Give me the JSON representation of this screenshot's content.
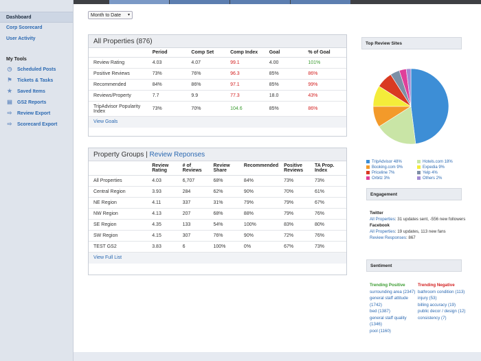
{
  "sidebar": {
    "items": [
      {
        "label": "Dashboard"
      },
      {
        "label": "Corp Scorecard"
      },
      {
        "label": "User Activity"
      }
    ],
    "tools_heading": "My Tools",
    "tools": [
      {
        "label": "Scheduled Posts",
        "icon": "clock-icon"
      },
      {
        "label": "Tickets & Tasks",
        "icon": "tag-icon"
      },
      {
        "label": "Saved Items",
        "icon": "star-icon"
      },
      {
        "label": "GS2 Reports",
        "icon": "bar-chart-icon"
      },
      {
        "label": "Review Export",
        "icon": "export-icon"
      },
      {
        "label": "Scorecard Export",
        "icon": "export-icon"
      }
    ]
  },
  "filter": {
    "selected": "Month to Date"
  },
  "all_properties": {
    "title": "All Properties (876)",
    "headers": [
      "",
      "Period",
      "Comp Set",
      "Comp Index",
      "Goal",
      "% of Goal"
    ],
    "rows": [
      {
        "label": "Review Rating",
        "period": "4.03",
        "comp": "4.07",
        "index": "99.1",
        "index_color": "red",
        "goal": "4.00",
        "pct": "101%",
        "pct_color": "green"
      },
      {
        "label": "Positive Reviews",
        "period": "73%",
        "comp": "76%",
        "index": "96.3",
        "index_color": "red",
        "goal": "85%",
        "pct": "86%",
        "pct_color": "red"
      },
      {
        "label": "Recommended",
        "period": "84%",
        "comp": "86%",
        "index": "97.1",
        "index_color": "red",
        "goal": "85%",
        "pct": "99%",
        "pct_color": "red"
      },
      {
        "label": "Reviews/Property",
        "period": "7.7",
        "comp": "9.9",
        "index": "77.3",
        "index_color": "red",
        "goal": "18.0",
        "pct": "43%",
        "pct_color": "red"
      },
      {
        "label": "TripAdvisor Popularity Index",
        "period": "73%",
        "comp": "70%",
        "index": "104.6",
        "index_color": "green",
        "goal": "85%",
        "pct": "86%",
        "pct_color": "red"
      }
    ],
    "footer_link": "View Goals"
  },
  "property_groups": {
    "title": "Property Groups",
    "title_link": "Review Reponses",
    "headers": [
      "",
      "Review Rating",
      "# of Reviews",
      "Review Share",
      "Recommended",
      "Positive Reviews",
      "TA Prop. Index"
    ],
    "rows": [
      {
        "label": "All Properties",
        "rating": "4.03",
        "reviews": "6,707",
        "share": "68%",
        "rec": "84%",
        "pos": "73%",
        "ta": "73%"
      },
      {
        "label": "Central Region",
        "rating": "3.93",
        "reviews": "284",
        "share": "62%",
        "rec": "90%",
        "pos": "70%",
        "ta": "61%"
      },
      {
        "label": "NE Region",
        "rating": "4.11",
        "reviews": "337",
        "share": "31%",
        "rec": "79%",
        "pos": "79%",
        "ta": "67%"
      },
      {
        "label": "NW Region",
        "rating": "4.13",
        "reviews": "207",
        "share": "68%",
        "rec": "88%",
        "pos": "79%",
        "ta": "76%"
      },
      {
        "label": "SE Region",
        "rating": "4.35",
        "reviews": "133",
        "share": "54%",
        "rec": "100%",
        "pos": "83%",
        "ta": "80%"
      },
      {
        "label": "SW Region",
        "rating": "4.15",
        "reviews": "307",
        "share": "76%",
        "rec": "90%",
        "pos": "72%",
        "ta": "76%"
      },
      {
        "label": "TEST GS2",
        "rating": "3.83",
        "reviews": "6",
        "share": "100%",
        "rec": "0%",
        "pos": "67%",
        "ta": "73%"
      }
    ],
    "footer_link": "View Full List"
  },
  "top_review_sites": {
    "title": "Top Review Sites",
    "chart_data": {
      "type": "pie",
      "slices": [
        {
          "name": "TripAdvisor",
          "value": 48,
          "color": "#3d8ed6"
        },
        {
          "name": "Hotels.com",
          "value": 18,
          "color": "#c9e5a6"
        },
        {
          "name": "Booking.com",
          "value": 9,
          "color": "#f39a2a"
        },
        {
          "name": "Expedia",
          "value": 9,
          "color": "#f4ec3a"
        },
        {
          "name": "Priceline",
          "value": 7,
          "color": "#d93a22"
        },
        {
          "name": "Yelp",
          "value": 4,
          "color": "#7d8fa6"
        },
        {
          "name": "Orbitz",
          "value": 3,
          "color": "#e03f9a"
        },
        {
          "name": "Others",
          "value": 2,
          "color": "#a38bd4"
        }
      ]
    },
    "legend": [
      {
        "label": "TripAdvisor 48%",
        "color": "#3d8ed6"
      },
      {
        "label": "Hotels.com 18%",
        "color": "#c9e5a6"
      },
      {
        "label": "Booking.com 9%",
        "color": "#f39a2a"
      },
      {
        "label": "Expedia 9%",
        "color": "#f4ec3a"
      },
      {
        "label": "Priceline 7%",
        "color": "#d93a22"
      },
      {
        "label": "Yelp 4%",
        "color": "#7d8fa6"
      },
      {
        "label": "Orbitz 3%",
        "color": "#e03f9a"
      },
      {
        "label": "Others 2%",
        "color": "#a38bd4"
      }
    ]
  },
  "engagement": {
    "title": "Engagement",
    "twitter_label": "Twitter",
    "twitter_link": "All Properties",
    "twitter_text": ": 31 updates sent, -556 new followers",
    "facebook_label": "Facebook",
    "facebook_link": "All Properties",
    "facebook_text": ": 19 updates, 113 new fans",
    "responses_link": "Review Responses",
    "responses_text": ": 867"
  },
  "sentiment": {
    "title": "Sentiment",
    "positive_heading": "Trending Positive",
    "negative_heading": "Trending Negative",
    "positive": [
      "surrounding area (2347)",
      "general staff attitude (1742)",
      "bed (1387)",
      "general staff quality (1346)",
      "pool (1160)"
    ],
    "negative": [
      "bathroom condition (113)",
      "injury (53)",
      "billing accuracy (19)",
      "public decor / design (12)",
      "consistency (7)"
    ]
  }
}
